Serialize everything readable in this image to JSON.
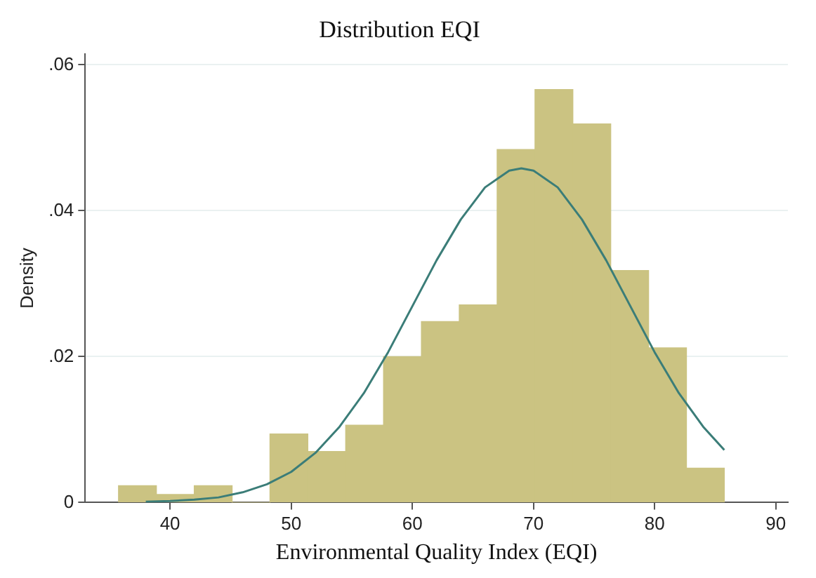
{
  "chart_data": {
    "type": "histogram",
    "title": "Distribution EQI",
    "xlabel": "Environmental Quality Index (EQI)",
    "ylabel": "Density",
    "bins": [
      35.75,
      38.875,
      42,
      45.125,
      48.25,
      51.375,
      54.5,
      57.625,
      60.75,
      63.875,
      67,
      70.125,
      73.25,
      76.375,
      79.5,
      82.625,
      85.75
    ],
    "values": [
      0.0023,
      0.0011,
      0.0023,
      0,
      0.0094,
      0.007,
      0.0106,
      0.02,
      0.0248,
      0.0271,
      0.0484,
      0.0566,
      0.0519,
      0.0318,
      0.0212,
      0.0047
    ],
    "color": "#cbc382",
    "series": [
      {
        "type": "line",
        "color": "#3b7d78",
        "x": [
          38,
          40,
          42,
          44,
          46,
          48,
          50,
          52,
          54,
          56,
          58,
          60,
          62,
          64,
          66,
          68,
          69,
          70,
          72,
          74,
          76,
          78,
          80,
          82,
          84,
          85.75
        ],
        "values": [
          0.0001,
          0.0002,
          0.0004,
          0.0007,
          0.0014,
          0.0025,
          0.0042,
          0.0068,
          0.0104,
          0.015,
          0.0206,
          0.0269,
          0.0332,
          0.0388,
          0.0432,
          0.0455,
          0.0458,
          0.0455,
          0.0432,
          0.0388,
          0.0332,
          0.0269,
          0.0206,
          0.015,
          0.0104,
          0.0072
        ]
      }
    ],
    "xlim": [
      33,
      91
    ],
    "xticks": [
      40,
      50,
      60,
      70,
      80,
      90
    ],
    "ylim": [
      0,
      0.0615
    ],
    "yticks": [
      0,
      {
        "value": 0.02,
        "label": ".02"
      },
      {
        "value": 0.04,
        "label": ".04"
      },
      {
        "value": 0.06,
        "label": ".06"
      }
    ],
    "grid": "y",
    "legend": false,
    "marker": "none",
    "line_style": "solid"
  }
}
